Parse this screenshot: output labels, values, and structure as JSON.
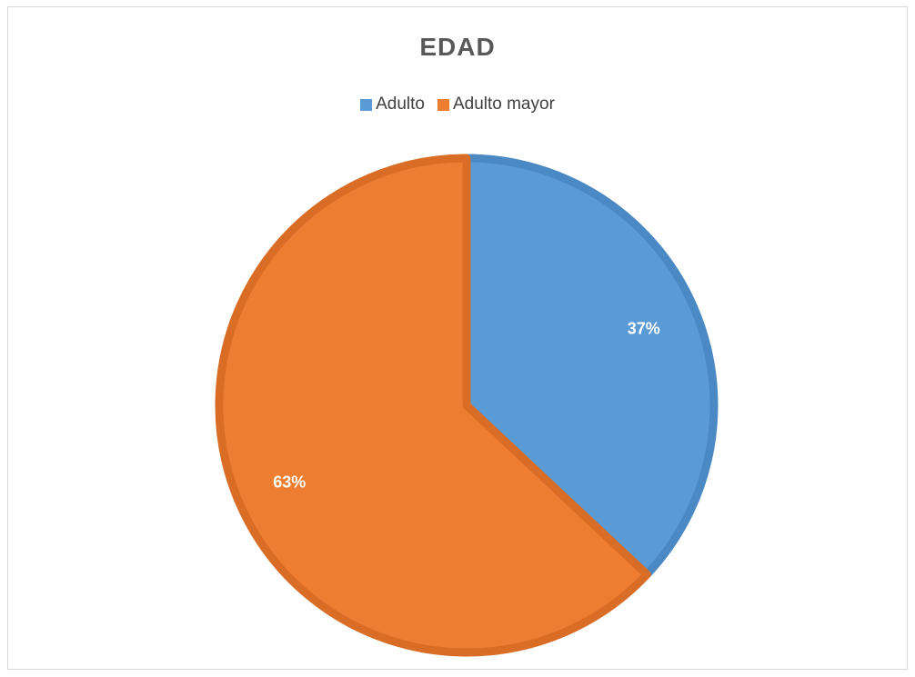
{
  "chart_data": {
    "type": "pie",
    "title": "EDAD",
    "legend_position": "top",
    "categories": [
      "Adulto",
      "Adulto mayor"
    ],
    "values": [
      37,
      63
    ],
    "labels": [
      "37%",
      "63%"
    ],
    "colors": [
      "#5b9bd5",
      "#ed7d31"
    ],
    "border_colors": [
      "#4a89c4",
      "#d96d26"
    ]
  }
}
